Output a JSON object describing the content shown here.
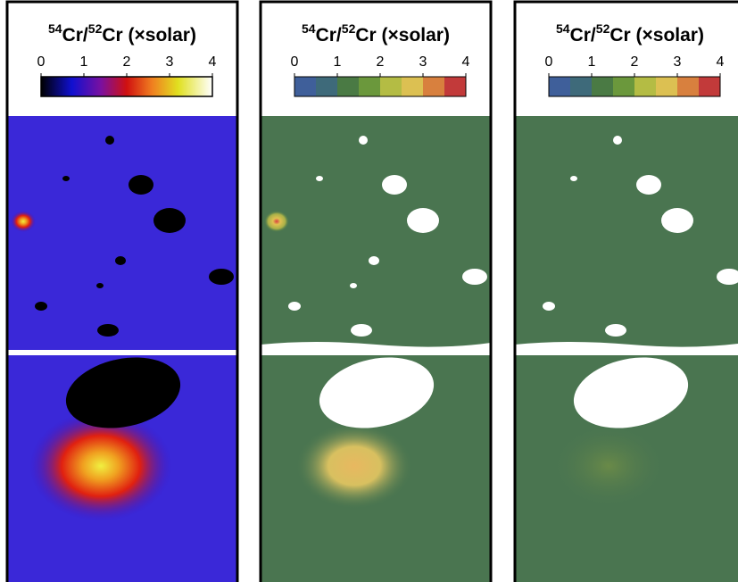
{
  "panels": [
    {
      "title": {
        "mass1": "54",
        "el1": "Cr/",
        "mass2": "52",
        "el2": "Cr (×solar)"
      },
      "colorbar": {
        "style": "continuous",
        "lim": [
          0,
          4
        ],
        "ticks": [
          0,
          1,
          2,
          3,
          4
        ]
      }
    },
    {
      "title": {
        "mass1": "54",
        "el1": "Cr/",
        "mass2": "52",
        "el2": "Cr (×solar)"
      },
      "colorbar": {
        "style": "discrete",
        "lim": [
          0,
          4
        ],
        "ticks": [
          0,
          1,
          2,
          3,
          4
        ]
      }
    },
    {
      "title": {
        "mass1": "54",
        "el1": "Cr/",
        "mass2": "52",
        "el2": "Cr (×solar)"
      },
      "colorbar": {
        "style": "discrete",
        "lim": [
          0,
          4
        ],
        "ticks": [
          0,
          1,
          2,
          3,
          4
        ]
      }
    }
  ]
}
